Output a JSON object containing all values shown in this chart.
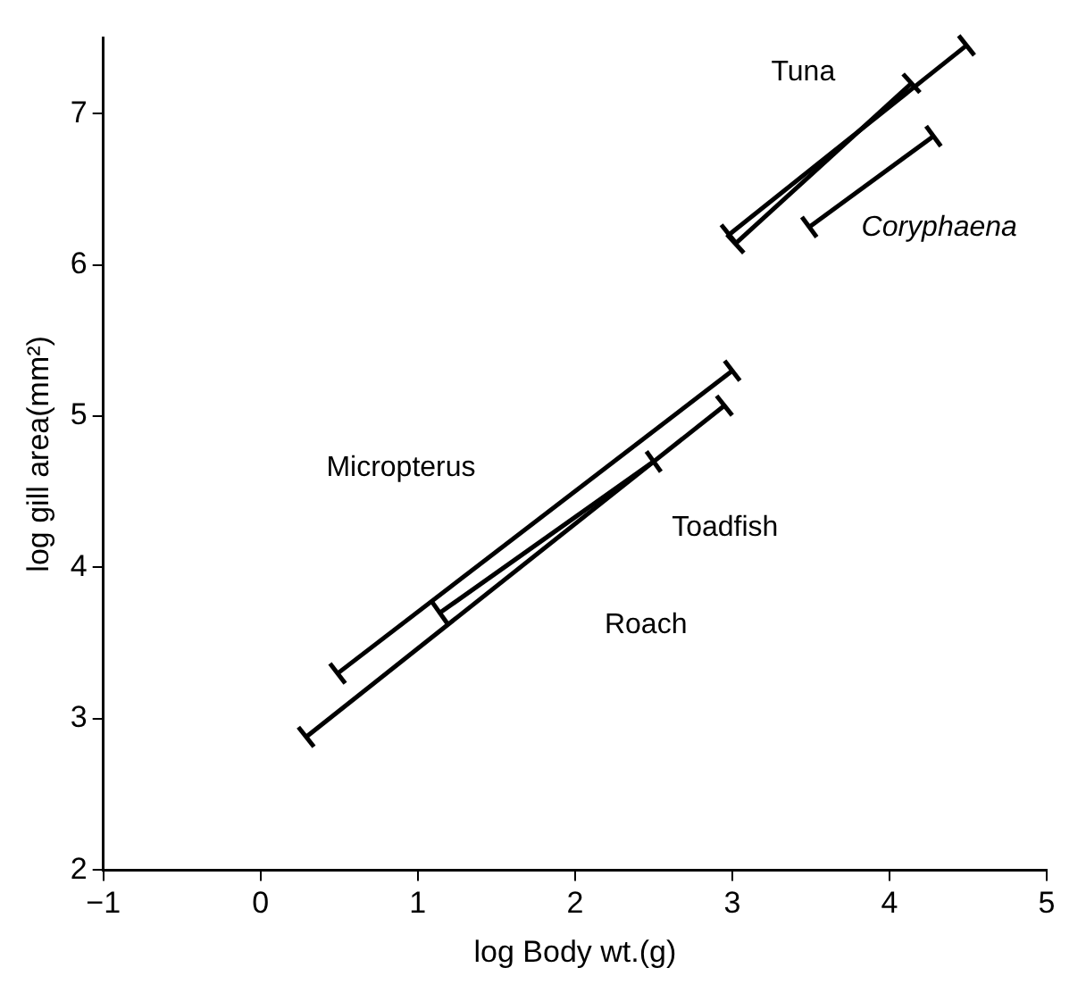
{
  "chart_data": {
    "type": "line",
    "xlabel": "log Body wt.(g)",
    "ylabel": "log gill area(mm²)",
    "xlim": [
      -1,
      5
    ],
    "xticks": [
      -1,
      0,
      1,
      2,
      3,
      4,
      5
    ],
    "ylim": [
      2,
      7.5
    ],
    "yticks": [
      2,
      3,
      4,
      5,
      6,
      7
    ],
    "grid": false,
    "legend": false,
    "line_style": "solid",
    "marker": "cross",
    "series": [
      {
        "name": "Tuna",
        "color": "#000000",
        "x": [
          2.98,
          4.49
        ],
        "values": [
          6.2,
          7.45
        ]
      },
      {
        "color": "#000000",
        "x": [
          3.02,
          4.14
        ],
        "values": [
          6.14,
          7.2
        ]
      },
      {
        "name": "Coryphaena",
        "color": "#000000",
        "x": [
          3.49,
          4.28
        ],
        "values": [
          6.25,
          6.85
        ]
      },
      {
        "name": "Micropterus",
        "color": "#000000",
        "x": [
          0.49,
          3.0
        ],
        "values": [
          3.3,
          5.3
        ]
      },
      {
        "name": "Toadfish",
        "color": "#000000",
        "x": [
          1.14,
          2.5
        ],
        "values": [
          3.7,
          4.7
        ]
      },
      {
        "name": "Roach",
        "color": "#000000",
        "x": [
          0.29,
          2.95
        ],
        "values": [
          2.88,
          5.07
        ]
      }
    ]
  }
}
